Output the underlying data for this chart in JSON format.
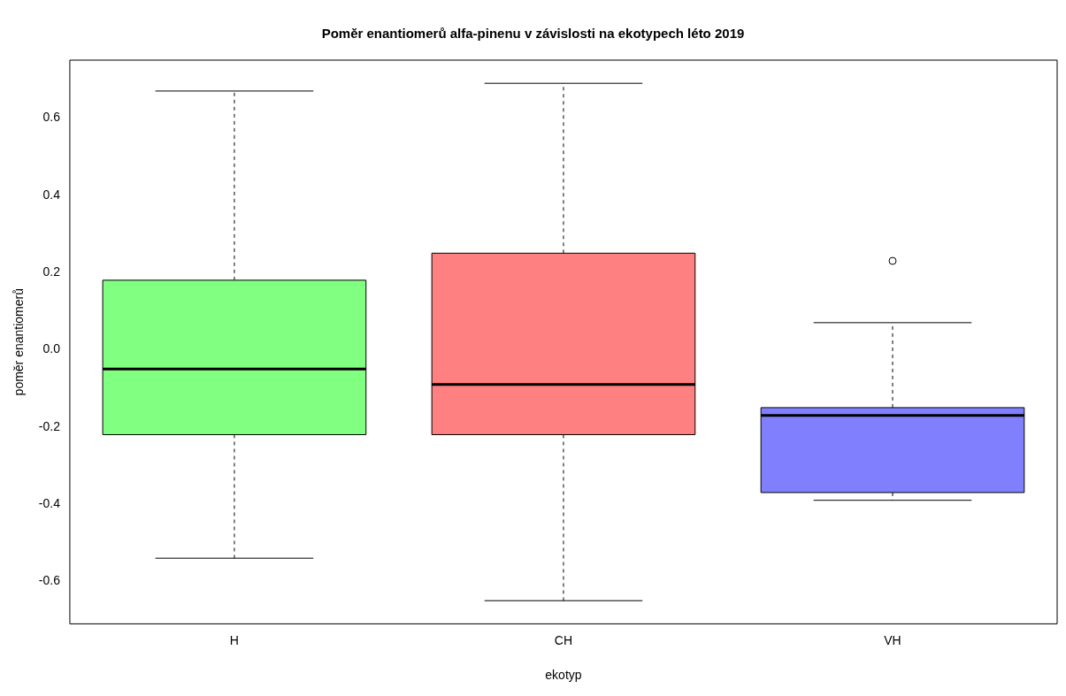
{
  "chart_data": {
    "type": "box",
    "title": "Poměr enantiomerů alfa-pinenu v závislosti na ekotypech léto 2019",
    "xlabel": "ekotyp",
    "ylabel": "poměr enantiomerů",
    "categories": [
      "H",
      "CH",
      "VH"
    ],
    "colors": [
      "#80ff80",
      "#ff8080",
      "#8080ff"
    ],
    "boxes": [
      {
        "low": -0.54,
        "q1": -0.22,
        "median": -0.05,
        "q3": 0.18,
        "high": 0.67
      },
      {
        "low": -0.65,
        "q1": -0.22,
        "median": -0.09,
        "q3": 0.25,
        "high": 0.69
      },
      {
        "low": -0.39,
        "q1": -0.37,
        "median": -0.17,
        "q3": -0.15,
        "high": 0.07,
        "outliers": [
          0.23
        ]
      }
    ],
    "ylim": [
      -0.71,
      0.75
    ],
    "yticks": [
      -0.6,
      -0.4,
      -0.2,
      {
        "value": 0,
        "label": "0.0"
      },
      0.2,
      0.4,
      0.6
    ],
    "grid": false,
    "legend": false
  }
}
